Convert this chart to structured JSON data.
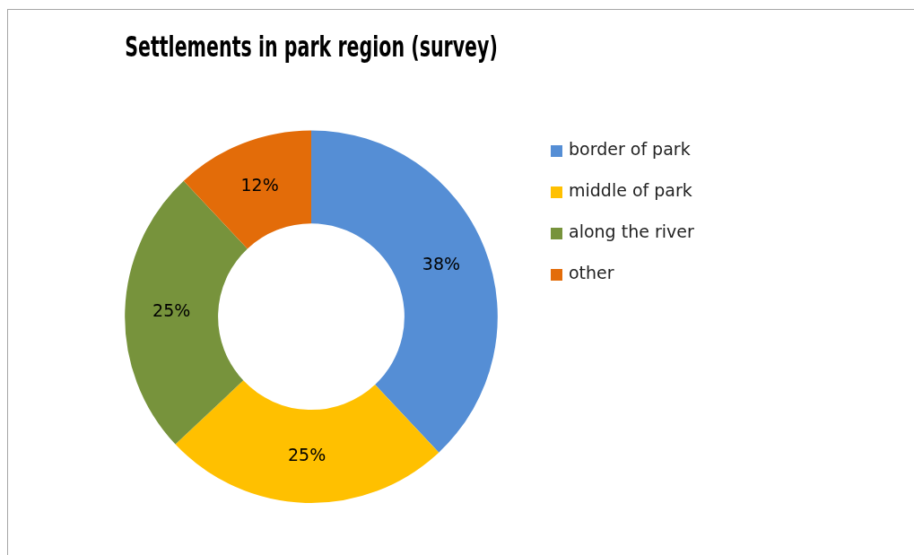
{
  "chart_data": {
    "type": "donut",
    "title": "Settlements in park region (survey)",
    "categories": [
      "border of park",
      "middle of park",
      "along the river",
      "other"
    ],
    "values": [
      38,
      25,
      25,
      12
    ],
    "value_labels": [
      "38%",
      "25%",
      "25%",
      "12%"
    ],
    "colors": [
      "#558ed5",
      "#ffc000",
      "#77933c",
      "#e36c09"
    ],
    "legend": "right"
  }
}
